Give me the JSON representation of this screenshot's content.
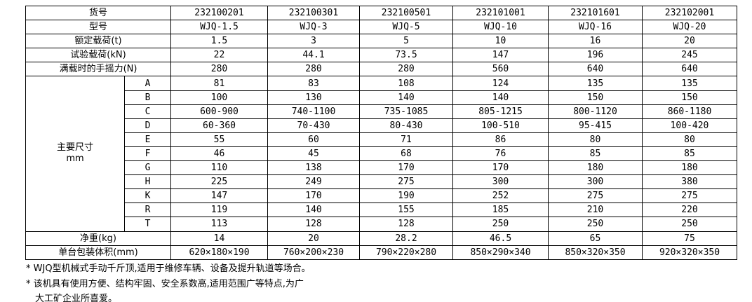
{
  "table": {
    "top_rows": [
      {
        "label": "货号",
        "values": [
          "232100201",
          "232100301",
          "232100501",
          "232101001",
          "232101601",
          "232102001"
        ]
      },
      {
        "label": "型号",
        "values": [
          "WJQ-1.5",
          "WJQ-3",
          "WJQ-5",
          "WJQ-10",
          "WJQ-16",
          "WJQ-20"
        ]
      },
      {
        "label": "额定载荷(t)",
        "values": [
          "1.5",
          "3",
          "5",
          "10",
          "16",
          "20"
        ]
      },
      {
        "label": "试验载荷(kN)",
        "values": [
          "22",
          "44.1",
          "73.5",
          "147",
          "196",
          "245"
        ]
      },
      {
        "label": "满载时的手摇力(N)",
        "values": [
          "280",
          "280",
          "280",
          "560",
          "640",
          "640"
        ]
      }
    ],
    "dims_group": {
      "label_line1": "主要尺寸",
      "label_line2": "mm",
      "rows": [
        {
          "letter": "A",
          "values": [
            "81",
            "83",
            "108",
            "124",
            "135",
            "135"
          ]
        },
        {
          "letter": "B",
          "values": [
            "100",
            "130",
            "140",
            "140",
            "150",
            "150"
          ]
        },
        {
          "letter": "C",
          "values": [
            "600-900",
            "740-1100",
            "735-1085",
            "805-1215",
            "800-1120",
            "860-1180"
          ]
        },
        {
          "letter": "D",
          "values": [
            "60-360",
            "70-430",
            "80-430",
            "100-510",
            "95-415",
            "100-420"
          ]
        },
        {
          "letter": "E",
          "values": [
            "55",
            "60",
            "71",
            "86",
            "80",
            "80"
          ]
        },
        {
          "letter": "F",
          "values": [
            "46",
            "45",
            "68",
            "76",
            "85",
            "85"
          ]
        },
        {
          "letter": "G",
          "values": [
            "110",
            "138",
            "170",
            "170",
            "180",
            "180"
          ]
        },
        {
          "letter": "H",
          "values": [
            "225",
            "249",
            "275",
            "300",
            "300",
            "380"
          ]
        },
        {
          "letter": "K",
          "values": [
            "147",
            "170",
            "190",
            "252",
            "275",
            "275"
          ]
        },
        {
          "letter": "R",
          "values": [
            "119",
            "140",
            "155",
            "185",
            "210",
            "220"
          ]
        },
        {
          "letter": "T",
          "values": [
            "113",
            "128",
            "128",
            "250",
            "250",
            "250"
          ]
        }
      ]
    },
    "bottom_rows": [
      {
        "label": "净重(kg)",
        "values": [
          "14",
          "20",
          "28.2",
          "46.5",
          "65",
          "75"
        ]
      },
      {
        "label": "单台包装体积(mm)",
        "values": [
          "620×180×190",
          "760×200×230",
          "790×220×280",
          "850×290×340",
          "850×320×350",
          "920×320×350"
        ]
      }
    ]
  },
  "footnotes": {
    "line1": "* WJQ型机械式手动千斤顶,适用于维修车辆、设备及提升轨道等场合。",
    "line2": "* 该机具有使用方便、结构牢固、安全系数高,适用范围广等特点,为广",
    "line3": "大工矿企业所喜爱。"
  },
  "colors": {
    "border": "#000000",
    "text": "#000000",
    "background": "#ffffff"
  }
}
